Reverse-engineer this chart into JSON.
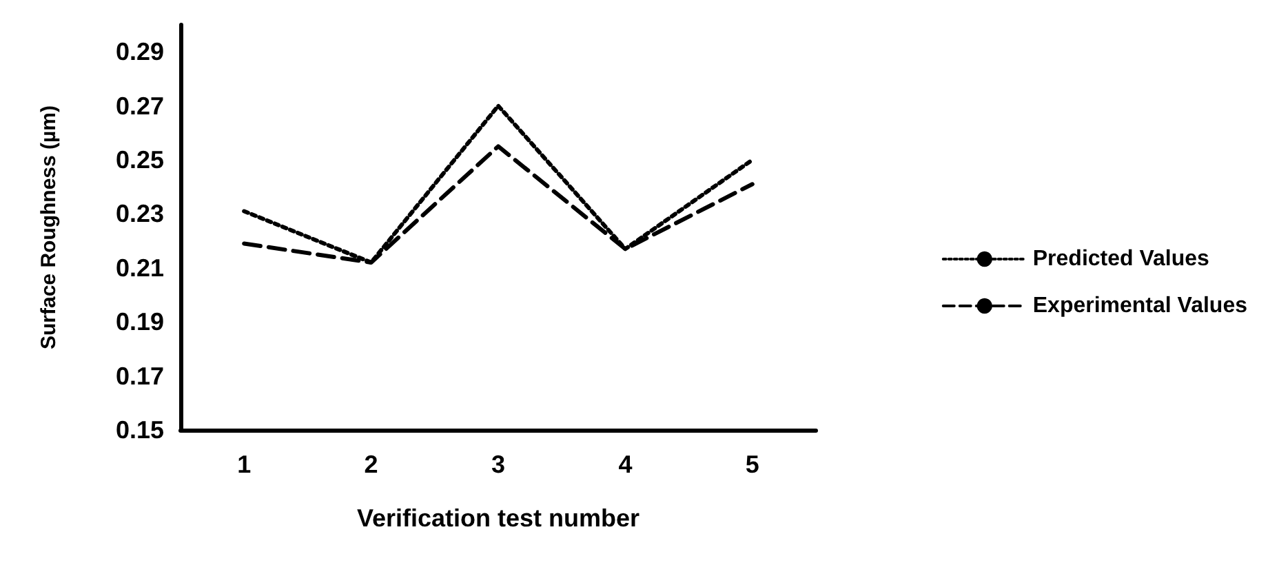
{
  "chart_data": {
    "type": "line",
    "xlabel": "Verification test number",
    "ylabel": "Surface Roughness (µm)",
    "categories": [
      "1",
      "2",
      "3",
      "4",
      "5"
    ],
    "series": [
      {
        "name": "Predicted Values",
        "color": "#000000",
        "line_style": "dotted",
        "values": [
          0.231,
          0.212,
          0.27,
          0.217,
          0.25
        ]
      },
      {
        "name": "Experimental Values",
        "color": "#000000",
        "line_style": "dashed",
        "values": [
          0.219,
          0.212,
          0.255,
          0.217,
          0.241
        ]
      }
    ],
    "ylim": [
      0.15,
      0.3
    ],
    "yticks": [
      0.15,
      0.17,
      0.19,
      0.21,
      0.23,
      0.25,
      0.27,
      0.29
    ],
    "grid": false,
    "legend": "right",
    "marker": "none"
  }
}
